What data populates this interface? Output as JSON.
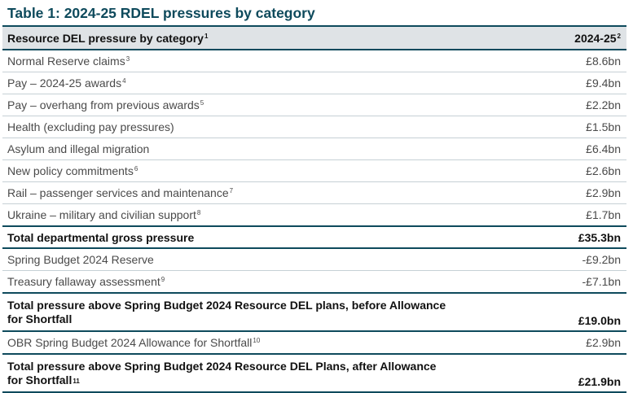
{
  "title": "Table 1: 2024-25 RDEL pressures by category",
  "header": {
    "category_label": "Resource DEL pressure by category",
    "category_note": "1",
    "year_label": "2024-25",
    "year_note": "2"
  },
  "rows": [
    {
      "label": "Normal Reserve claims",
      "note": "3",
      "value": "£8.6bn"
    },
    {
      "label": "Pay – 2024-25 awards",
      "note": "4",
      "value": "£9.4bn"
    },
    {
      "label": "Pay – overhang from previous awards",
      "note": "5",
      "value": "£2.2bn"
    },
    {
      "label": "Health (excluding pay pressures)",
      "note": "",
      "value": "£1.5bn"
    },
    {
      "label": "Asylum and illegal migration",
      "note": "",
      "value": "£6.4bn"
    },
    {
      "label": "New policy commitments",
      "note": "6",
      "value": "£2.6bn"
    },
    {
      "label": "Rail – passenger services and maintenance",
      "note": "7",
      "value": "£2.9bn"
    },
    {
      "label": "Ukraine – military and civilian support",
      "note": "8",
      "value": "£1.7bn"
    },
    {
      "label": "Total departmental gross pressure",
      "note": "",
      "value": "£35.3bn"
    },
    {
      "label": "Spring Budget 2024 Reserve",
      "note": "",
      "value": "-£9.2bn"
    },
    {
      "label": "Treasury fallaway assessment",
      "note": "9",
      "value": "-£7.1bn"
    },
    {
      "label": "Total pressure above Spring Budget 2024 Resource DEL plans, before Allowance for Shortfall",
      "note": "",
      "value": "£19.0bn"
    },
    {
      "label": "OBR Spring Budget 2024 Allowance for Shortfall",
      "note": "10",
      "value": "£2.9bn"
    },
    {
      "label": "Total pressure above Spring Budget 2024 Resource DEL Plans, after Allowance for Shortfall",
      "note": "11",
      "value": "£21.9bn"
    }
  ]
}
